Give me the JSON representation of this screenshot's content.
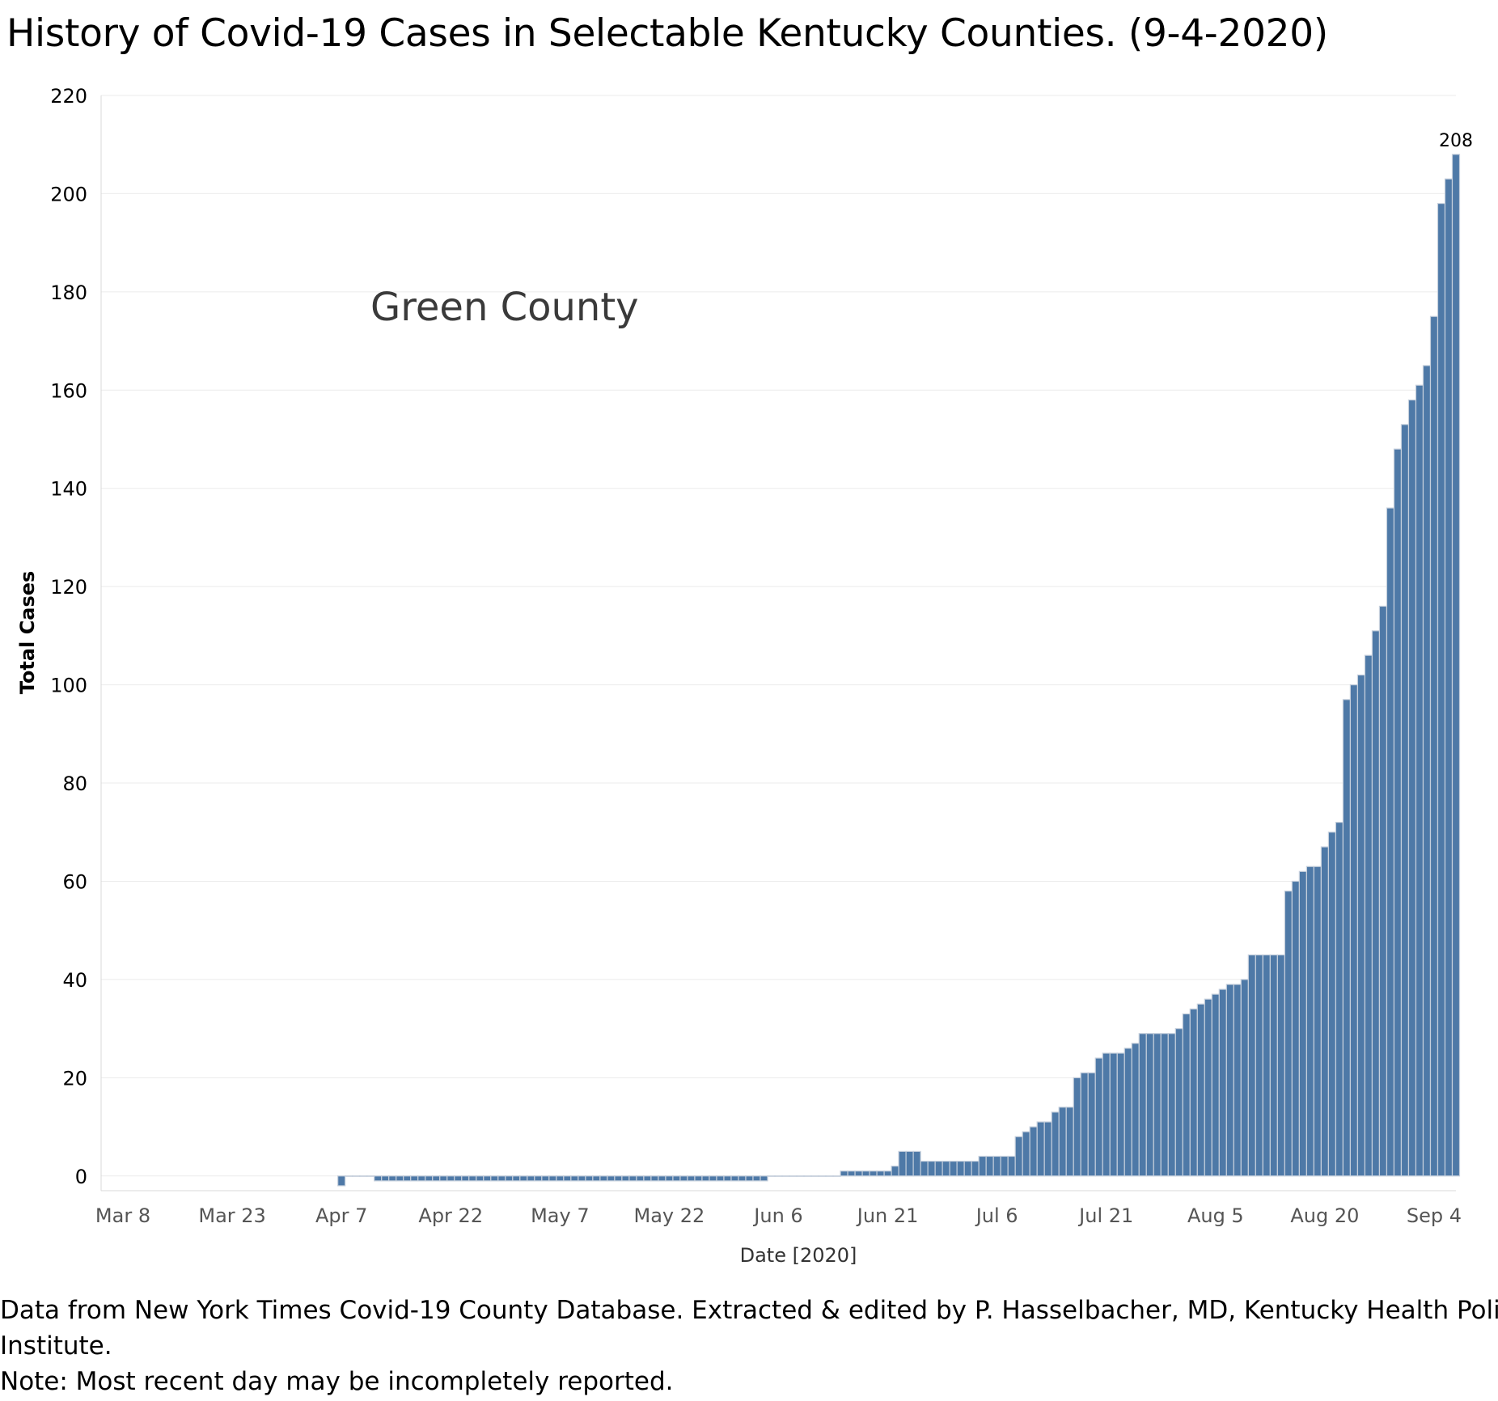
{
  "title": "History of Covid-19 Cases in Selectable Kentucky Counties. (9-4-2020)",
  "footer": {
    "line1": "Data from New York Times Covid-19 County Database.  Extracted & edited by P. Hasselbacher, MD,  Kentucky Health Policy",
    "line2": "Institute.",
    "line3": "Note: Most recent day may be incompletely reported."
  },
  "colors": {
    "bar": "#4e79a7",
    "bar_outline": "#c5cfdc",
    "grid": "#ebebeb",
    "tick_text": "#000000",
    "date_text": "#555555"
  },
  "chart_data": {
    "type": "bar",
    "annotation": "Green County",
    "xlabel": "Date [2020]",
    "ylabel": "Total Cases",
    "ylim": [
      -3,
      220
    ],
    "yticks": [
      0,
      20,
      40,
      60,
      80,
      100,
      120,
      140,
      160,
      180,
      200,
      220
    ],
    "xlim": [
      "2020-03-05",
      "2020-09-07"
    ],
    "xticks": [
      {
        "date": "2020-03-08",
        "label": "Mar 8"
      },
      {
        "date": "2020-03-23",
        "label": "Mar 23"
      },
      {
        "date": "2020-04-07",
        "label": "Apr 7"
      },
      {
        "date": "2020-04-22",
        "label": "Apr 22"
      },
      {
        "date": "2020-05-07",
        "label": "May 7"
      },
      {
        "date": "2020-05-22",
        "label": "May 22"
      },
      {
        "date": "2020-06-06",
        "label": "Jun 6"
      },
      {
        "date": "2020-06-21",
        "label": "Jun 21"
      },
      {
        "date": "2020-07-06",
        "label": "Jul 6"
      },
      {
        "date": "2020-07-21",
        "label": "Jul 21"
      },
      {
        "date": "2020-08-05",
        "label": "Aug 5"
      },
      {
        "date": "2020-08-20",
        "label": "Aug 20"
      },
      {
        "date": "2020-09-04",
        "label": "Sep 4"
      }
    ],
    "x_start": "2020-04-07",
    "x_end": "2020-09-04",
    "values": [
      -2,
      0,
      0,
      0,
      0,
      -1,
      -1,
      -1,
      -1,
      -1,
      -1,
      -1,
      -1,
      -1,
      -1,
      -1,
      -1,
      -1,
      -1,
      -1,
      -1,
      -1,
      -1,
      -1,
      -1,
      -1,
      -1,
      -1,
      -1,
      -1,
      -1,
      -1,
      -1,
      -1,
      -1,
      -1,
      -1,
      -1,
      -1,
      -1,
      -1,
      -1,
      -1,
      -1,
      -1,
      -1,
      -1,
      -1,
      -1,
      -1,
      -1,
      -1,
      -1,
      -1,
      -1,
      -1,
      -1,
      -1,
      -1,
      0,
      0,
      0,
      0,
      0,
      0,
      0,
      0,
      0,
      0,
      1,
      1,
      1,
      1,
      1,
      1,
      1,
      2,
      5,
      5,
      5,
      3,
      3,
      3,
      3,
      3,
      3,
      3,
      3,
      4,
      4,
      4,
      4,
      4,
      8,
      9,
      10,
      11,
      11,
      13,
      14,
      14,
      20,
      21,
      21,
      24,
      25,
      25,
      25,
      26,
      27,
      29,
      29,
      29,
      29,
      29,
      30,
      33,
      34,
      35,
      36,
      37,
      38,
      39,
      39,
      40,
      45,
      45,
      45,
      45,
      45,
      58,
      60,
      62,
      63,
      63,
      67,
      70,
      72,
      97,
      100,
      102,
      106,
      111,
      116,
      136,
      148,
      153,
      158,
      161,
      165,
      175,
      198,
      203,
      208
    ],
    "data_label": {
      "date": "2020-09-04",
      "value": 208,
      "text": "208"
    }
  }
}
